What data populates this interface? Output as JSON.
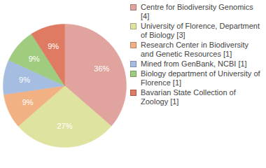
{
  "chart_data": {
    "type": "pie",
    "categories": [
      "Centre for Biodiversity Genomics [4]",
      "University of Florence, Department of Biology [3]",
      "Research Center in Biodiversity and Genetic Resources [1]",
      "Mined from GenBank, NCBI [1]",
      "Biology department of University of Florence [1]",
      "Bavarian State Collection of Zoology [1]"
    ],
    "values": [
      36,
      27,
      9,
      9,
      9,
      9
    ],
    "value_labels": [
      "36%",
      "27%",
      "9%",
      "9%",
      "9%",
      "9%"
    ],
    "colors": [
      "#e0a39e",
      "#dfe3a0",
      "#f2b183",
      "#a5bde0",
      "#9fcc7e",
      "#df7b62"
    ],
    "data_labels": true,
    "legend": "right"
  }
}
